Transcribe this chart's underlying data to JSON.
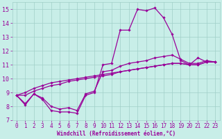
{
  "bg_color": "#c8eee8",
  "line_color": "#990099",
  "grid_color": "#a0cfc8",
  "xlabel": "Windchill (Refroidissement éolien,°C)",
  "xlabel_color": "#990099",
  "ylim": [
    7,
    15.5
  ],
  "xlim": [
    -0.5,
    23.5
  ],
  "yticks": [
    7,
    8,
    9,
    10,
    11,
    12,
    13,
    14,
    15
  ],
  "xticks": [
    0,
    1,
    2,
    3,
    4,
    5,
    6,
    7,
    8,
    9,
    10,
    11,
    12,
    13,
    14,
    15,
    16,
    17,
    18,
    19,
    20,
    21,
    22,
    23
  ],
  "series1_x": [
    0,
    1,
    2,
    3,
    4,
    5,
    6,
    7,
    8,
    9,
    10,
    11,
    12,
    13,
    14,
    15,
    16,
    17,
    18,
    19,
    20,
    21,
    22,
    23
  ],
  "series1_y": [
    8.8,
    8.1,
    8.9,
    8.5,
    7.7,
    7.6,
    7.6,
    7.5,
    8.8,
    9.0,
    11.0,
    11.1,
    13.5,
    13.5,
    15.0,
    14.9,
    15.1,
    14.4,
    13.2,
    11.3,
    11.0,
    11.5,
    11.2,
    11.2
  ],
  "series2_x": [
    0,
    1,
    2,
    3,
    4,
    5,
    6,
    7,
    8,
    9,
    10,
    11,
    12,
    13,
    14,
    15,
    16,
    17,
    18,
    19,
    20,
    21,
    22,
    23
  ],
  "series2_y": [
    8.8,
    8.2,
    8.9,
    8.6,
    8.0,
    7.8,
    7.9,
    7.7,
    8.9,
    9.1,
    10.5,
    10.6,
    10.9,
    11.1,
    11.2,
    11.3,
    11.5,
    11.6,
    11.7,
    11.4,
    11.1,
    11.1,
    11.3,
    11.2
  ],
  "series3_x": [
    0,
    1,
    2,
    3,
    4,
    5,
    6,
    7,
    8,
    9,
    10,
    11,
    12,
    13,
    14,
    15,
    16,
    17,
    18,
    19,
    20,
    21,
    22,
    23
  ],
  "series3_y": [
    8.8,
    8.8,
    9.1,
    9.3,
    9.5,
    9.6,
    9.8,
    9.9,
    10.0,
    10.1,
    10.2,
    10.3,
    10.5,
    10.6,
    10.7,
    10.8,
    10.9,
    11.0,
    11.1,
    11.1,
    11.0,
    11.0,
    11.2,
    11.2
  ],
  "series4_x": [
    0,
    1,
    2,
    3,
    4,
    5,
    6,
    7,
    8,
    9,
    10,
    11,
    12,
    13,
    14,
    15,
    16,
    17,
    18,
    19,
    20,
    21,
    22,
    23
  ],
  "series4_y": [
    8.8,
    9.0,
    9.3,
    9.5,
    9.7,
    9.8,
    9.9,
    10.0,
    10.1,
    10.2,
    10.3,
    10.4,
    10.5,
    10.6,
    10.7,
    10.8,
    10.9,
    11.0,
    11.1,
    11.1,
    11.0,
    11.0,
    11.2,
    11.2
  ],
  "tick_fontsize": 5.5,
  "xlabel_fontsize": 5.5,
  "marker_size": 1.8,
  "line_width": 0.9
}
